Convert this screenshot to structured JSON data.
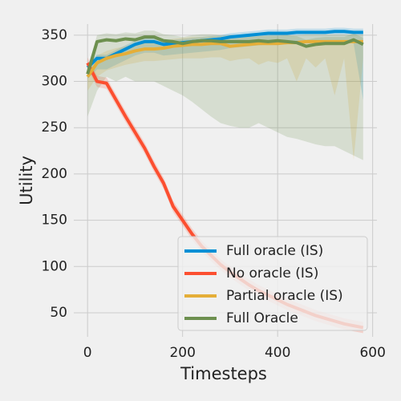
{
  "chart_data": {
    "type": "line",
    "x_label": "Timesteps",
    "y_label": "Utility",
    "x": [
      0,
      20,
      40,
      60,
      80,
      100,
      120,
      140,
      160,
      180,
      200,
      220,
      240,
      260,
      280,
      300,
      320,
      340,
      360,
      380,
      400,
      420,
      440,
      460,
      480,
      500,
      520,
      540,
      560,
      580
    ],
    "xlim": [
      -29,
      609
    ],
    "xticks": [
      0,
      200,
      400,
      600
    ],
    "ylim": [
      24,
      362
    ],
    "yticks": [
      50,
      100,
      150,
      200,
      250,
      300,
      350
    ],
    "grid": true,
    "legend": "lower right",
    "series": [
      {
        "name": "Full oracle (IS)",
        "color": "#008fd5",
        "values": [
          315,
          325,
          325,
          330,
          335,
          340,
          343,
          343,
          340,
          341,
          342,
          343,
          344,
          345,
          346,
          348,
          349,
          350,
          351,
          352,
          352,
          352,
          353,
          353,
          353,
          353,
          354,
          354,
          353,
          353
        ],
        "lower": [
          303,
          313,
          313,
          318,
          323,
          328,
          331,
          331,
          328,
          329,
          330,
          331,
          332,
          333,
          334,
          336,
          337,
          338,
          339,
          340,
          340,
          340,
          341,
          341,
          341,
          341,
          342,
          342,
          341,
          280
        ],
        "upper": [
          319,
          329,
          329,
          334,
          339,
          344,
          347,
          347,
          344,
          345,
          346,
          347,
          348,
          349,
          350,
          352,
          353,
          354,
          355,
          356,
          356,
          356,
          357,
          357,
          357,
          357,
          358,
          358,
          357,
          357
        ]
      },
      {
        "name": "No oracle (IS)",
        "color": "#fc4f30",
        "values": [
          320,
          300,
          298,
          280,
          262,
          245,
          228,
          208,
          190,
          165,
          150,
          135,
          122,
          112,
          102,
          94,
          87,
          80,
          74,
          69,
          64,
          59,
          55,
          51,
          47,
          44,
          41,
          38,
          36,
          34
        ],
        "lower": [
          314,
          294,
          292,
          274,
          256,
          239,
          222,
          202,
          184,
          159,
          144,
          129,
          116,
          106,
          96,
          88,
          81,
          74,
          68,
          63,
          58,
          53,
          49,
          45,
          41,
          38,
          35,
          32,
          30,
          28
        ],
        "upper": [
          326,
          306,
          304,
          286,
          268,
          251,
          234,
          214,
          196,
          171,
          156,
          141,
          128,
          118,
          108,
          100,
          93,
          86,
          80,
          75,
          70,
          65,
          61,
          57,
          53,
          50,
          47,
          44,
          42,
          40
        ]
      },
      {
        "name": "Partial oracle (IS)",
        "color": "#e5ae38",
        "values": [
          305,
          320,
          325,
          328,
          330,
          333,
          335,
          335,
          336,
          338,
          339,
          340,
          340,
          341,
          341,
          338,
          339,
          340,
          341,
          341,
          341,
          342,
          342,
          343,
          343,
          343,
          343,
          343,
          343,
          343
        ],
        "lower": [
          290,
          305,
          312,
          315,
          318,
          320,
          322,
          322,
          323,
          324,
          325,
          325,
          325,
          326,
          326,
          322,
          324,
          325,
          318,
          322,
          320,
          325,
          300,
          325,
          315,
          325,
          285,
          325,
          215,
          325
        ],
        "upper": [
          313,
          328,
          333,
          336,
          338,
          341,
          343,
          343,
          344,
          346,
          347,
          348,
          348,
          349,
          349,
          346,
          347,
          348,
          349,
          349,
          349,
          350,
          350,
          351,
          351,
          351,
          351,
          351,
          351,
          351
        ]
      },
      {
        "name": "Full Oracle",
        "color": "#6d904f",
        "values": [
          308,
          343,
          345,
          344,
          346,
          345,
          348,
          348,
          344,
          343,
          341,
          343,
          344,
          344,
          343,
          343,
          343,
          343,
          344,
          343,
          344,
          343,
          342,
          338,
          340,
          341,
          341,
          341,
          345,
          340
        ],
        "lower": [
          262,
          290,
          305,
          300,
          305,
          300,
          300,
          300,
          295,
          290,
          285,
          278,
          270,
          262,
          255,
          252,
          250,
          250,
          255,
          250,
          245,
          240,
          238,
          235,
          232,
          230,
          230,
          225,
          220,
          215
        ],
        "upper": [
          315,
          350,
          352,
          351,
          353,
          352,
          355,
          355,
          351,
          350,
          348,
          350,
          351,
          351,
          350,
          350,
          350,
          350,
          351,
          350,
          351,
          350,
          349,
          345,
          347,
          348,
          348,
          348,
          352,
          347
        ]
      }
    ]
  }
}
